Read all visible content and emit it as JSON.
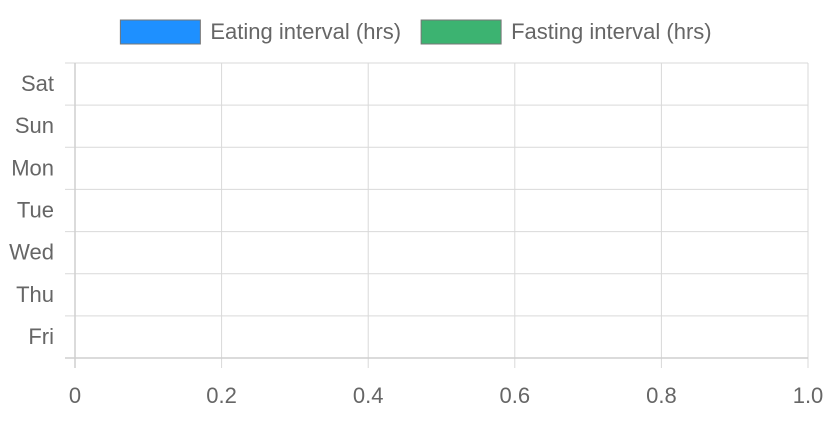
{
  "chart_data": {
    "type": "bar",
    "orientation": "horizontal",
    "stacked": true,
    "categories": [
      "Sat",
      "Sun",
      "Mon",
      "Tue",
      "Wed",
      "Thu",
      "Fri"
    ],
    "series": [
      {
        "name": "Eating interval (hrs)",
        "color": "#1e90ff",
        "values": [
          0,
          0,
          0,
          0,
          0,
          0,
          0
        ]
      },
      {
        "name": "Fasting interval (hrs)",
        "color": "#3cb371",
        "values": [
          0,
          0,
          0,
          0,
          0,
          0,
          0
        ]
      }
    ],
    "x_ticks": [
      "0",
      "0.2",
      "0.4",
      "0.6",
      "0.8",
      "1.0"
    ],
    "xlim": [
      0,
      1
    ],
    "grid": true,
    "legend_position": "top-center"
  }
}
